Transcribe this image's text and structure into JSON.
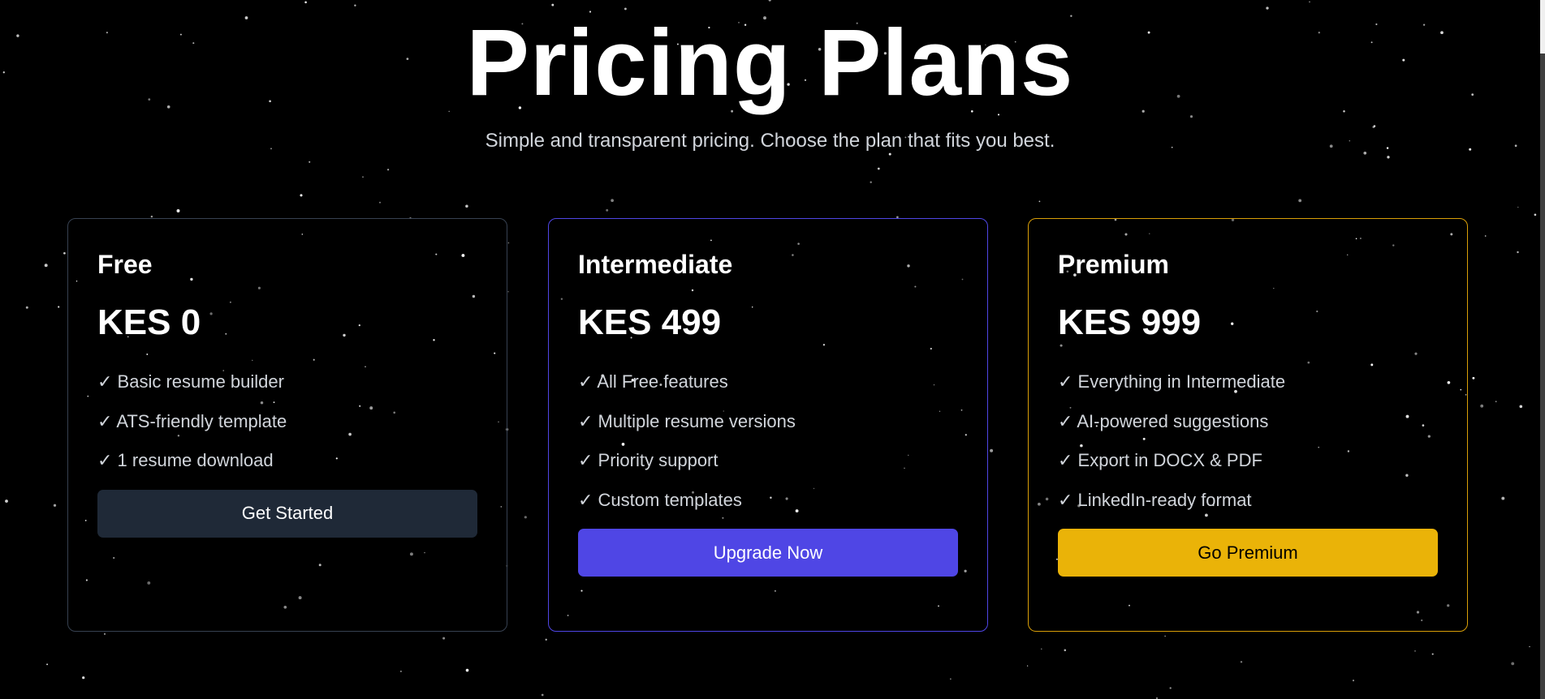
{
  "header": {
    "title": "Pricing Plans",
    "subtitle": "Simple and transparent pricing. Choose the plan that fits you best."
  },
  "plans": [
    {
      "name": "Free",
      "price": "KES 0",
      "features": [
        "✓ Basic resume builder",
        "✓ ATS-friendly template",
        "✓ 1 resume download"
      ],
      "button": "Get Started",
      "accent": "#1f2937"
    },
    {
      "name": "Intermediate",
      "price": "KES 499",
      "features": [
        "✓ All Free features",
        "✓ Multiple resume versions",
        "✓ Priority support",
        "✓ Custom templates"
      ],
      "button": "Upgrade Now",
      "accent": "#4f46e5"
    },
    {
      "name": "Premium",
      "price": "KES 999",
      "features": [
        "✓ Everything in Intermediate",
        "✓ AI-powered suggestions",
        "✓ Export in DOCX & PDF",
        "✓ LinkedIn-ready format"
      ],
      "button": "Go Premium",
      "accent": "#eab308"
    }
  ]
}
